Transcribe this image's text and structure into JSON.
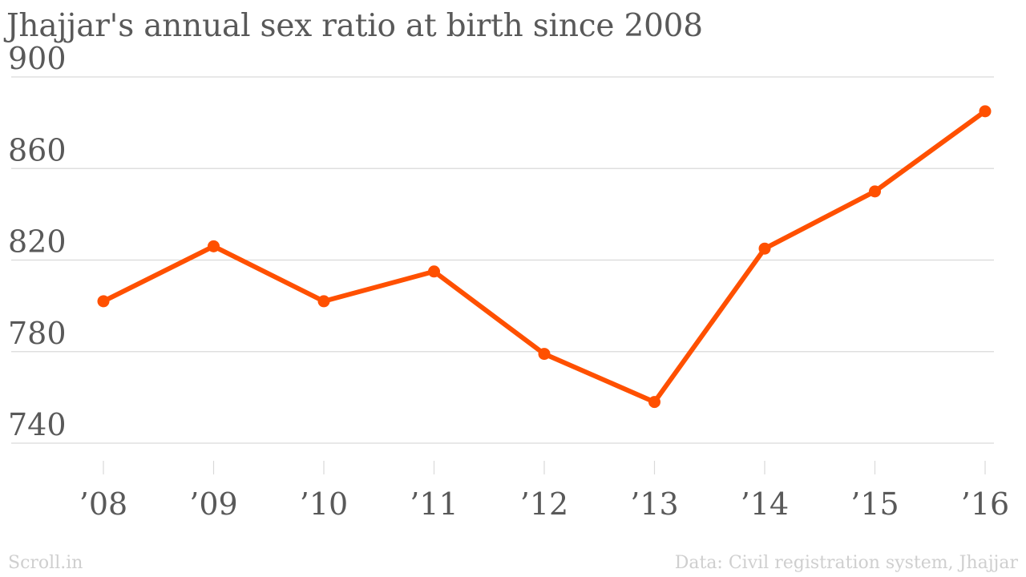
{
  "chart_data": {
    "type": "line",
    "title": "Jhajjar's annual sex ratio at birth since 2008",
    "categories": [
      "’08",
      "’09",
      "’10",
      "’11",
      "’12",
      "’13",
      "’14",
      "’15",
      "’16"
    ],
    "series": [
      {
        "values": [
          802,
          826,
          802,
          815,
          779,
          758,
          825,
          850,
          885
        ]
      }
    ],
    "yticks": [
      900,
      860,
      820,
      780,
      740
    ],
    "ylim": [
      740,
      900
    ],
    "xlabel": "",
    "ylabel": "",
    "grid": true,
    "colors": {
      "line": "#ff5000",
      "grid": "#d9d9d9",
      "text": "#595959"
    }
  },
  "footer": {
    "brand": "Scroll.in",
    "source": "Data: Civil registration system, Jhajjar"
  }
}
